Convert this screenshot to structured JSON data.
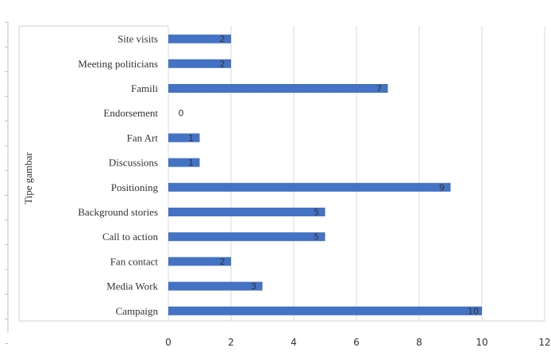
{
  "chart_data": {
    "type": "bar",
    "orientation": "horizontal",
    "ylabel": "Tipe gambar",
    "xlabel": "",
    "xlim": [
      0,
      12
    ],
    "xticks": [
      0,
      2,
      4,
      6,
      8,
      10,
      12
    ],
    "grid": true,
    "legend": "none",
    "bar_color": "#4472C4",
    "categories": [
      "Site visits",
      "Meeting politicians",
      "Famili",
      "Endorsement",
      "Fan Art",
      "Discussions",
      "Positioning",
      "Background stories",
      "Call to action",
      "Fan contact",
      "Media Work",
      "Campaign"
    ],
    "values": [
      2,
      2,
      7,
      0,
      1,
      1,
      9,
      5,
      5,
      2,
      3,
      10
    ]
  }
}
